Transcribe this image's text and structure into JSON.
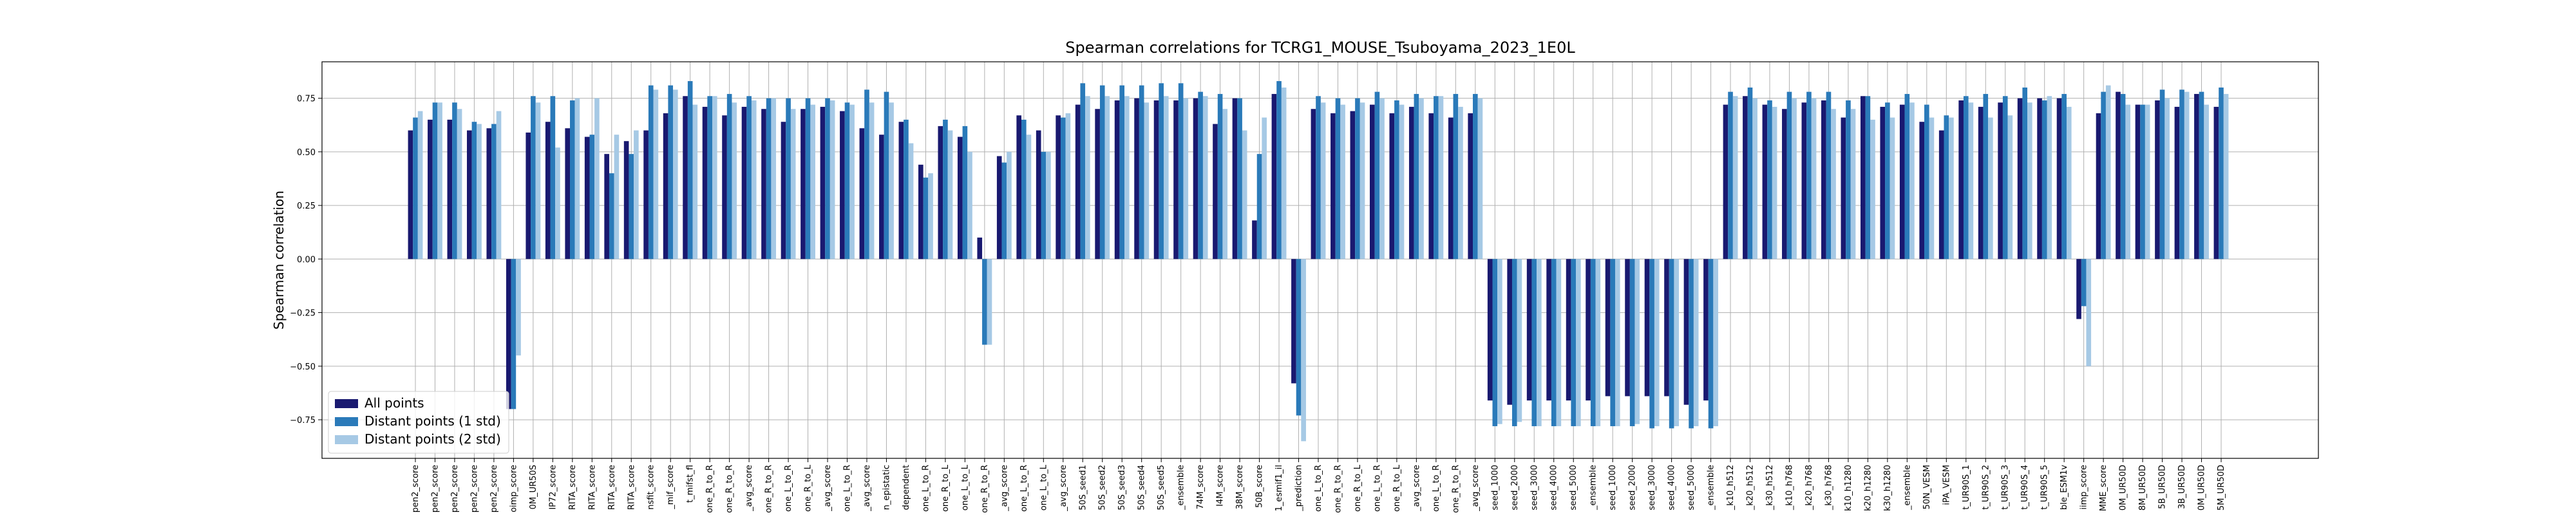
{
  "chart_data": {
    "type": "bar",
    "title": "Spearman correlations for TCRG1_MOUSE_Tsuboyama_2023_1E0L",
    "y_label": "Spearman correlation",
    "categories": [
      "pen2_score",
      "pen2_score",
      "pen2_score",
      "pen2_score",
      "pen2_score",
      "oimp_score",
      "0M_UR50S",
      "IP72_score",
      "RITA_score",
      "RITA_score",
      "RITA_score",
      "RITA_score",
      "nsfit_score",
      "_mif_score",
      "t_mifst_fl",
      "one_R_to_R",
      "one_R_to_R",
      "_avg_score",
      "one_R_to_R",
      "one_L_to_R",
      "one_R_to_L",
      "_avg_score",
      "one_L_to_R",
      "_avg_score",
      "n_epistatic",
      "dependent",
      "one_L_to_R",
      "one_R_to_L",
      "one_L_to_L",
      "one_R_to_R",
      "_avg_score",
      "one_L_to_R",
      "one_L_to_L",
      "_avg_score",
      "50S_seed1",
      "50S_seed2",
      "50S_seed3",
      "50S_seed4",
      "50S_seed5",
      "_ensemble",
      "74M_score",
      "I4M_score",
      "38M_score",
      "50B_score",
      "1_esmif1_il",
      "_prediction",
      "one_L_to_R",
      "one_R_to_R",
      "one_R_to_L",
      "one_L_to_R",
      "one_R_to_L",
      "_avg_score",
      "one_L_to_R",
      "one_R_to_R",
      "_avg_score",
      "seed_1000",
      "seed_2000",
      "seed_3000",
      "seed_4000",
      "seed_5000",
      "_ensemble",
      "seed_1000",
      "seed_2000",
      "seed_3000",
      "seed_4000",
      "seed_5000",
      "_ensemble",
      "_k10_h512",
      "_k20_h512",
      "_k30_h512",
      "_k10_h768",
      "_k20_h768",
      "_k30_h768",
      "k10_h1280",
      "k20_h1280",
      "k30_h1280",
      "_ensemble",
      "50N_VESM",
      "iPA_VESM",
      "t_UR90S_1",
      "t_UR90S_2",
      "t_UR90S_3",
      "t_UR90S_4",
      "t_UR90S_5",
      "ble_ESM1v",
      "iimp_score",
      "MME_score",
      "0M_UR50D",
      "8M_UR50D",
      "5B_UR50D",
      "3B_UR50D",
      "0M_UR50D",
      "5M_UR50D"
    ],
    "series": [
      {
        "name": "All points",
        "color": "#191970",
        "values": [
          0.6,
          0.65,
          0.65,
          0.6,
          0.61,
          -0.7,
          0.59,
          0.64,
          0.61,
          0.57,
          0.49,
          0.55,
          0.6,
          0.68,
          0.76,
          0.71,
          0.67,
          0.71,
          0.7,
          0.64,
          0.7,
          0.71,
          0.69,
          0.61,
          0.58,
          0.64,
          0.44,
          0.62,
          0.57,
          0.1,
          0.48,
          0.67,
          0.6,
          0.67,
          0.72,
          0.7,
          0.74,
          0.75,
          0.74,
          0.74,
          0.75,
          0.63,
          0.75,
          0.18,
          0.77,
          -0.58,
          0.7,
          0.68,
          0.69,
          0.72,
          0.68,
          0.71,
          0.68,
          0.66,
          0.68,
          -0.66,
          -0.68,
          -0.66,
          -0.66,
          -0.66,
          -0.66,
          -0.64,
          -0.64,
          -0.64,
          -0.64,
          -0.68,
          -0.66,
          0.72,
          0.76,
          0.72,
          0.7,
          0.73,
          0.74,
          0.66,
          0.76,
          0.71,
          0.72,
          0.64,
          0.6,
          0.74,
          0.71,
          0.73,
          0.75,
          0.75,
          0.75,
          -0.28,
          0.68,
          0.78,
          0.72,
          0.74,
          0.71,
          0.77,
          0.71
        ]
      },
      {
        "name": "Distant points (1 std)",
        "color": "#2a7ab9",
        "values": [
          0.66,
          0.73,
          0.73,
          0.64,
          0.63,
          -0.7,
          0.76,
          0.76,
          0.74,
          0.58,
          0.4,
          0.49,
          0.81,
          0.81,
          0.83,
          0.76,
          0.77,
          0.76,
          0.75,
          0.75,
          0.75,
          0.75,
          0.73,
          0.79,
          0.78,
          0.65,
          0.38,
          0.65,
          0.62,
          -0.4,
          0.45,
          0.65,
          0.5,
          0.66,
          0.82,
          0.81,
          0.81,
          0.81,
          0.82,
          0.82,
          0.78,
          0.77,
          0.75,
          0.49,
          0.83,
          -0.73,
          0.76,
          0.75,
          0.75,
          0.78,
          0.74,
          0.77,
          0.76,
          0.77,
          0.77,
          -0.78,
          -0.78,
          -0.78,
          -0.78,
          -0.78,
          -0.78,
          -0.78,
          -0.78,
          -0.79,
          -0.79,
          -0.79,
          -0.79,
          0.78,
          0.8,
          0.74,
          0.78,
          0.78,
          0.78,
          0.74,
          0.76,
          0.73,
          0.77,
          0.72,
          0.67,
          0.76,
          0.77,
          0.76,
          0.8,
          0.74,
          0.77,
          -0.22,
          0.78,
          0.77,
          0.72,
          0.79,
          0.79,
          0.78,
          0.8
        ]
      },
      {
        "name": "Distant points (2 std)",
        "color": "#a6c9e5",
        "values": [
          0.69,
          0.73,
          0.7,
          0.63,
          0.69,
          -0.45,
          0.73,
          0.52,
          0.75,
          0.75,
          0.58,
          0.6,
          0.79,
          0.79,
          0.72,
          0.76,
          0.73,
          0.74,
          0.75,
          0.7,
          0.72,
          0.74,
          0.72,
          0.73,
          0.73,
          0.54,
          0.4,
          0.6,
          0.5,
          -0.4,
          0.5,
          0.58,
          0.5,
          0.68,
          0.76,
          0.76,
          0.76,
          0.73,
          0.76,
          0.75,
          0.76,
          0.7,
          0.6,
          0.66,
          0.8,
          -0.85,
          0.73,
          0.72,
          0.73,
          0.75,
          0.72,
          0.75,
          0.76,
          0.71,
          0.75,
          -0.77,
          -0.76,
          -0.78,
          -0.78,
          -0.78,
          -0.78,
          -0.78,
          -0.77,
          -0.78,
          -0.78,
          -0.78,
          -0.78,
          0.76,
          0.75,
          0.71,
          0.75,
          0.75,
          0.7,
          0.7,
          0.65,
          0.66,
          0.73,
          0.66,
          0.66,
          0.73,
          0.66,
          0.67,
          0.73,
          0.76,
          0.71,
          -0.5,
          0.81,
          0.72,
          0.72,
          0.75,
          0.78,
          0.72,
          0.77
        ]
      }
    ],
    "ylim": [
      -0.93,
      0.92
    ],
    "yticks": [
      {
        "value": -0.75,
        "label": "−0.75"
      },
      {
        "value": -0.5,
        "label": "−0.50"
      },
      {
        "value": -0.25,
        "label": "−0.25"
      },
      {
        "value": 0,
        "label": "0.00"
      },
      {
        "value": 0.25,
        "label": "0.25"
      },
      {
        "value": 0.5,
        "label": "0.50"
      },
      {
        "value": 0.75,
        "label": "0.75"
      }
    ],
    "grid": true,
    "legend": "lower left"
  }
}
